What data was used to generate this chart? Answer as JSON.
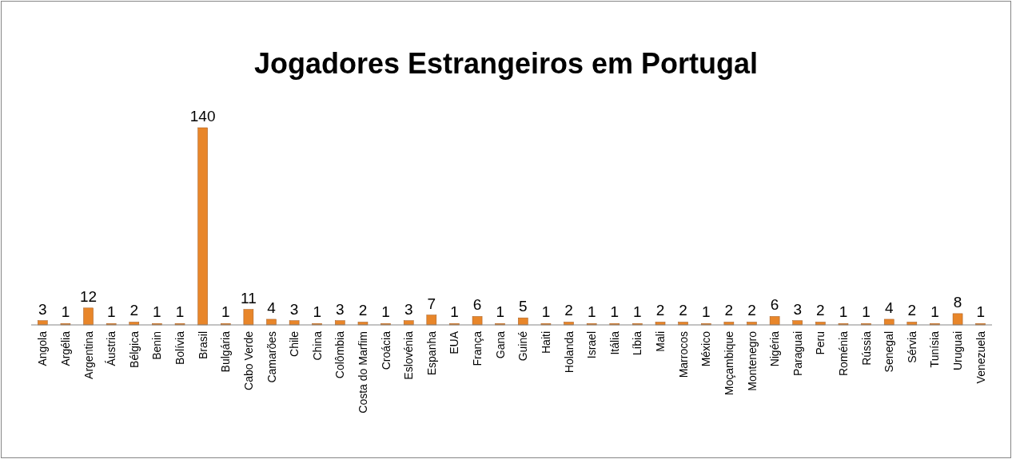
{
  "chart_data": {
    "type": "bar",
    "title": "Jogadores Estrangeiros em Portugal",
    "categories": [
      "Angola",
      "Argélia",
      "Argentina",
      "Áustria",
      "Bélgica",
      "Benin",
      "Bolívia",
      "Brasil",
      "Bulgária",
      "Cabo Verde",
      "Camarões",
      "Chile",
      "China",
      "Colômbia",
      "Costa do Marfim",
      "Croácia",
      "Eslovénia",
      "Espanha",
      "EUA",
      "França",
      "Gana",
      "Guiné",
      "Haiti",
      "Holanda",
      "Israel",
      "Itália",
      "Líbia",
      "Mali",
      "Marrocos",
      "México",
      "Moçambique",
      "Montenegro",
      "Nigéria",
      "Paraguai",
      "Peru",
      "Roménia",
      "Rússia",
      "Senegal",
      "Sérvia",
      "Tunísia",
      "Uruguai",
      "Venezuela"
    ],
    "values": [
      3,
      1,
      12,
      1,
      2,
      1,
      1,
      140,
      1,
      11,
      4,
      3,
      1,
      3,
      2,
      1,
      3,
      7,
      1,
      6,
      1,
      5,
      1,
      2,
      1,
      1,
      1,
      2,
      2,
      1,
      2,
      2,
      6,
      3,
      2,
      1,
      1,
      4,
      2,
      1,
      8,
      1
    ],
    "color": "#e8862a",
    "data_labels": true
  }
}
